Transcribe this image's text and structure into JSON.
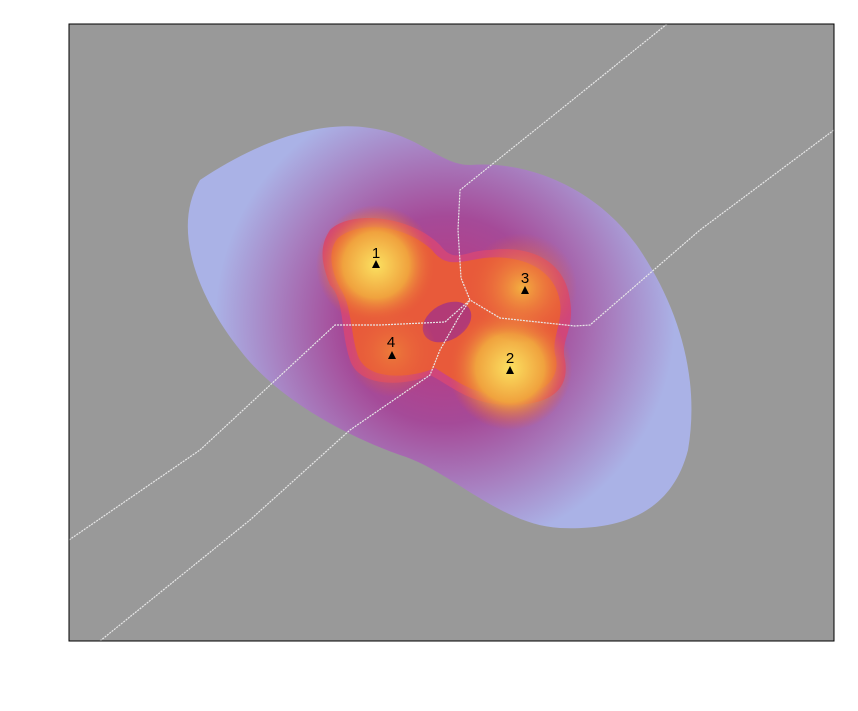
{
  "chart_data": {
    "type": "heatmap",
    "title": "",
    "xlabel": "",
    "ylabel": "",
    "grid": false,
    "legend": "none",
    "colors": {
      "background": "#999999",
      "outer": "#aab2e6",
      "mid": "#b0307a",
      "inner": "#e85a3a",
      "peak": "#fbe060",
      "boundary": "#e8e8e8",
      "frame": "#000000"
    },
    "stations": [
      {
        "label": "1"
      },
      {
        "label": "2"
      },
      {
        "label": "3"
      },
      {
        "label": "4"
      }
    ]
  }
}
